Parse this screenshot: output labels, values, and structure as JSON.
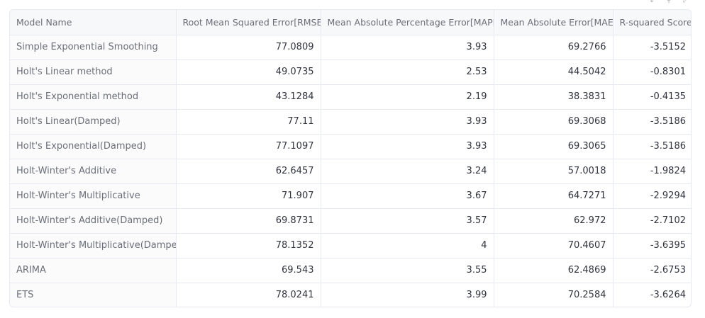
{
  "toolbar": {
    "icons": [
      "download-icon",
      "search-icon",
      "fullscreen-icon"
    ]
  },
  "table": {
    "columns": [
      "Model Name",
      "Root Mean Squared Error[RMSE]",
      "Mean Absolute Percentage Error[MAPE]",
      "Mean Absolute Error[MAE]",
      "R-squared Score"
    ],
    "rows": [
      [
        "Simple Exponential Smoothing",
        "77.0809",
        "3.93",
        "69.2766",
        "-3.5152"
      ],
      [
        "Holt's Linear method",
        "49.0735",
        "2.53",
        "44.5042",
        "-0.8301"
      ],
      [
        "Holt's Exponential method",
        "43.1284",
        "2.19",
        "38.3831",
        "-0.4135"
      ],
      [
        "Holt's Linear(Damped)",
        "77.11",
        "3.93",
        "69.3068",
        "-3.5186"
      ],
      [
        "Holt's Exponential(Damped)",
        "77.1097",
        "3.93",
        "69.3065",
        "-3.5186"
      ],
      [
        "Holt-Winter's Additive",
        "62.6457",
        "3.24",
        "57.0018",
        "-1.9824"
      ],
      [
        "Holt-Winter's Multiplicative",
        "71.907",
        "3.67",
        "64.7271",
        "-2.9294"
      ],
      [
        "Holt-Winter's Additive(Damped)",
        "69.8731",
        "3.57",
        "62.972",
        "-2.7102"
      ],
      [
        "Holt-Winter's Multiplicative(Damped)",
        "78.1352",
        "4",
        "70.4607",
        "-3.6395"
      ],
      [
        "ARIMA",
        "69.543",
        "3.55",
        "62.4869",
        "-2.6753"
      ],
      [
        "ETS",
        "78.0241",
        "3.99",
        "70.2584",
        "-3.6264"
      ]
    ]
  }
}
